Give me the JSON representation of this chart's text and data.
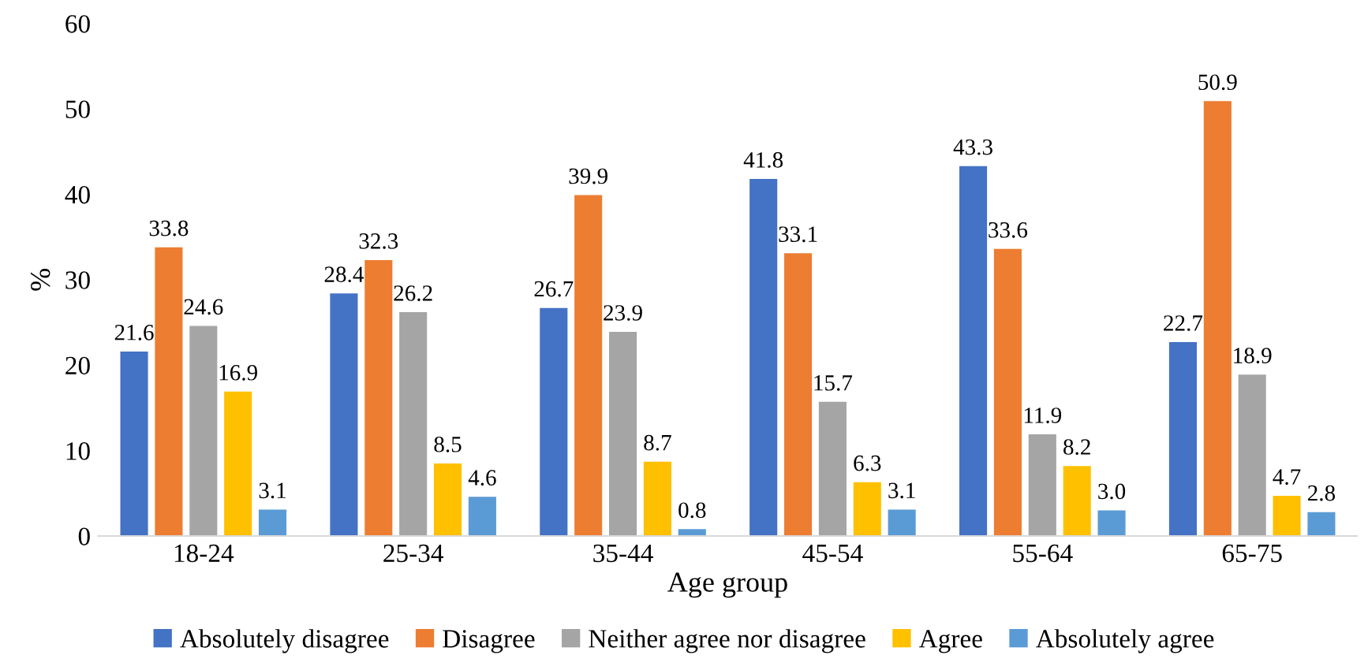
{
  "chart_data": {
    "type": "bar",
    "xlabel": "Age group",
    "ylabel": "%",
    "categories": [
      "18-24",
      "25-34",
      "35-44",
      "45-54",
      "55-64",
      "65-75"
    ],
    "series": [
      {
        "name": "Absolutely disagree",
        "color": "#4472c4",
        "values": [
          21.6,
          28.4,
          26.7,
          41.8,
          43.3,
          22.7
        ]
      },
      {
        "name": "Disagree",
        "color": "#ed7d31",
        "values": [
          33.8,
          32.3,
          39.9,
          33.1,
          33.6,
          50.9
        ]
      },
      {
        "name": "Neither agree nor disagree",
        "color": "#a5a5a5",
        "values": [
          24.6,
          26.2,
          23.9,
          15.7,
          11.9,
          18.9
        ]
      },
      {
        "name": "Agree",
        "color": "#ffc000",
        "values": [
          16.9,
          8.5,
          8.7,
          6.3,
          8.2,
          4.7
        ]
      },
      {
        "name": "Absolutely agree",
        "color": "#5b9bd5",
        "values": [
          3.1,
          4.6,
          0.8,
          3.1,
          3.0,
          2.8
        ],
        "value_labels": [
          "3.1",
          "4.6",
          "0.8",
          "3.1",
          "3.0",
          "2.8"
        ]
      }
    ],
    "ylim": [
      0,
      60
    ],
    "yticks": [
      0,
      10,
      20,
      30,
      40,
      50,
      60
    ],
    "grid": false,
    "legend": "bottom",
    "data_labels": true
  }
}
